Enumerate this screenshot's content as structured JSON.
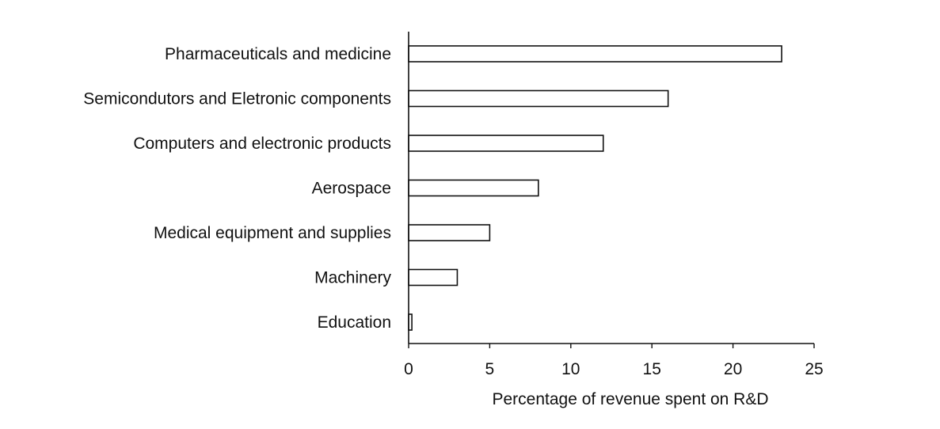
{
  "chart_data": {
    "type": "bar",
    "orientation": "horizontal",
    "categories": [
      "Pharmaceuticals and medicine",
      "Semicondutors and Eletronic components",
      "Computers and electronic products",
      "Aerospace",
      "Medical equipment and supplies",
      "Machinery",
      "Education"
    ],
    "values": [
      23,
      16,
      12,
      8,
      5,
      3,
      0.2
    ],
    "xlabel": "Percentage of revenue spent on R&D",
    "ylabel": "",
    "title": "",
    "xlim": [
      0,
      25
    ],
    "xticks": [
      "0",
      "5",
      "10",
      "15",
      "20",
      "25"
    ],
    "grid": false,
    "legend": "none"
  }
}
